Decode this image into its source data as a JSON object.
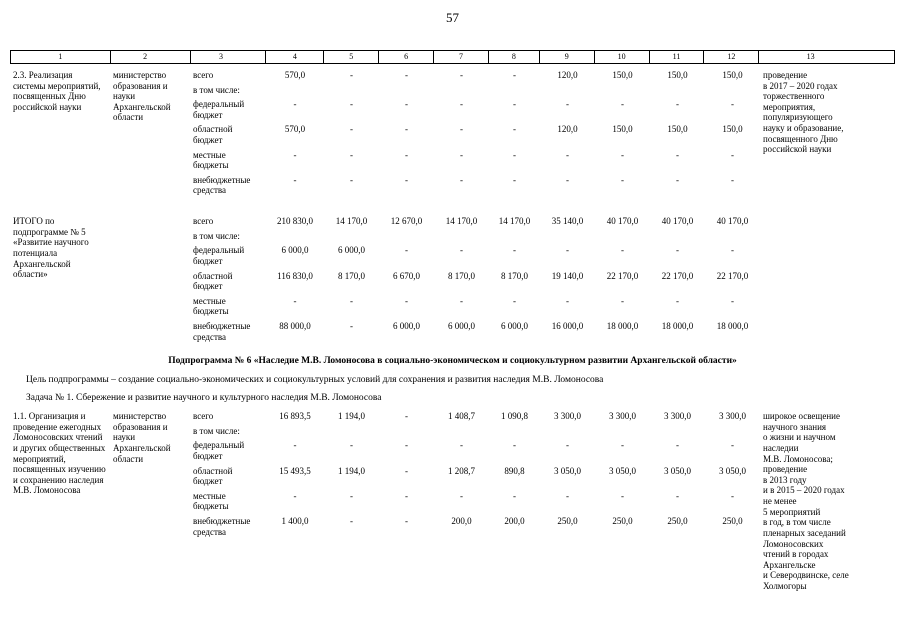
{
  "page_number": "57",
  "table": {
    "column_numbers": [
      "1",
      "2",
      "3",
      "4",
      "5",
      "6",
      "7",
      "8",
      "9",
      "10",
      "11",
      "12",
      "13"
    ],
    "rows": [
      {
        "title": "2.3. Реализация системы мероприятий, посвященных Дню российской науки",
        "executor": "министерство образования и науки Архангельской области",
        "lines": [
          {
            "label": "всего",
            "values": [
              "570,0",
              "-",
              "-",
              "-",
              "-",
              "120,0",
              "150,0",
              "150,0",
              "150,0"
            ]
          },
          {
            "label": "в том числе:",
            "values": []
          },
          {
            "label": "федеральный бюджет",
            "values": [
              "-",
              "-",
              "-",
              "-",
              "-",
              "-",
              "-",
              "-",
              "-"
            ]
          },
          {
            "label": "областной бюджет",
            "values": [
              "570,0",
              "-",
              "-",
              "-",
              "-",
              "120,0",
              "150,0",
              "150,0",
              "150,0"
            ]
          },
          {
            "label": "местные бюджеты",
            "values": [
              "-",
              "-",
              "-",
              "-",
              "-",
              "-",
              "-",
              "-",
              "-"
            ]
          },
          {
            "label": "внебюджетные средства",
            "values": [
              "-",
              "-",
              "-",
              "-",
              "-",
              "-",
              "-",
              "-",
              "-"
            ]
          }
        ],
        "result": "проведение\nв 2017 – 2020 годах\nторжественного\nмероприятия,\nпопуляризующего\nнауку и образование,\nпосвященного Дню\nроссийской науки"
      },
      {
        "title": "ИТОГО по подпрограмме № 5 «Развитие научного потенциала Архангельской области»",
        "executor": "",
        "lines": [
          {
            "label": "всего",
            "values": [
              "210 830,0",
              "14 170,0",
              "12 670,0",
              "14 170,0",
              "14 170,0",
              "35 140,0",
              "40 170,0",
              "40 170,0",
              "40 170,0"
            ]
          },
          {
            "label": "в том числе:",
            "values": []
          },
          {
            "label": "федеральный бюджет",
            "values": [
              "6 000,0",
              "6 000,0",
              "-",
              "-",
              "-",
              "-",
              "-",
              "-",
              "-"
            ]
          },
          {
            "label": "областной бюджет",
            "values": [
              "116 830,0",
              "8 170,0",
              "6 670,0",
              "8 170,0",
              "8 170,0",
              "19 140,0",
              "22 170,0",
              "22 170,0",
              "22 170,0"
            ]
          },
          {
            "label": "местные бюджеты",
            "values": [
              "-",
              "-",
              "-",
              "-",
              "-",
              "-",
              "-",
              "-",
              "-"
            ]
          },
          {
            "label": "внебюджетные средства",
            "values": [
              "88 000,0",
              "-",
              "6 000,0",
              "6 000,0",
              "6 000,0",
              "16 000,0",
              "18 000,0",
              "18 000,0",
              "18 000,0"
            ]
          }
        ],
        "result": ""
      },
      {
        "title": "1.1. Организация и проведение ежегодных Ломоносовских чтений и других общественных мероприятий, посвященных изучению и сохранению наследия М.В. Ломоносова",
        "executor": "министерство образования и науки Архангельской области",
        "lines": [
          {
            "label": "всего",
            "values": [
              "16 893,5",
              "1 194,0",
              "-",
              "1 408,7",
              "1 090,8",
              "3 300,0",
              "3 300,0",
              "3 300,0",
              "3 300,0"
            ]
          },
          {
            "label": "в том числе:",
            "values": []
          },
          {
            "label": "федеральный бюджет",
            "values": [
              "-",
              "-",
              "-",
              "-",
              "-",
              "-",
              "-",
              "-",
              "-"
            ]
          },
          {
            "label": "областной бюджет",
            "values": [
              "15 493,5",
              "1 194,0",
              "-",
              "1 208,7",
              "890,8",
              "3 050,0",
              "3 050,0",
              "3 050,0",
              "3 050,0"
            ]
          },
          {
            "label": "местные бюджеты",
            "values": [
              "-",
              "-",
              "-",
              "-",
              "-",
              "-",
              "-",
              "-",
              "-"
            ]
          },
          {
            "label": "внебюджетные средства",
            "values": [
              "1 400,0",
              "-",
              "-",
              "200,0",
              "200,0",
              "250,0",
              "250,0",
              "250,0",
              "250,0"
            ]
          }
        ],
        "result": "широкое освещение\nнаучного знания\nо жизни и научном\nнаследии\nМ.В. Ломоносова;\nпроведение\nв 2013 году\nи в 2015 – 2020 годах\nне менее\n5 мероприятий\nв год, в том числе\nпленарных заседаний\nЛомоносовских\nчтений в городах\nАрхангельске\nи Северодвинске, селе\nХолмогоры"
      }
    ]
  },
  "section": {
    "subprogram_title": "Подпрограмма № 6 «Наследие М.В. Ломоносова в социально-экономическом и социокультурном развитии Архангельской области»",
    "goal": "Цель подпрограммы – создание социально-экономических и социокультурных условий для сохранения и развития наследия М.В. Ломоносова",
    "task": "Задача № 1. Сбережение и развитие научного и культурного наследия М.В. Ломоносова"
  }
}
